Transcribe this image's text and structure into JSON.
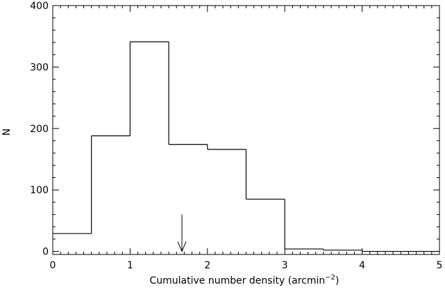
{
  "chart_data": {
    "type": "bar",
    "subtype": "step-histogram",
    "xlabel": "Cumulative number density (arcmin",
    "xlabel_exponent": "−2",
    "xlabel_suffix": ")",
    "ylabel": "N",
    "xlim": [
      0,
      5
    ],
    "ylim": [
      -5,
      400
    ],
    "xticks": [
      0,
      1,
      2,
      3,
      4,
      5
    ],
    "yticks": [
      0,
      100,
      200,
      300,
      400
    ],
    "bin_edges": [
      0,
      0.5,
      1.0,
      1.5,
      2.0,
      2.5,
      3.0,
      3.5,
      4.0,
      4.5,
      5.0
    ],
    "values": [
      29,
      188,
      341,
      174,
      166,
      85,
      4,
      2,
      0,
      0
    ],
    "grid": false,
    "annotations": [
      {
        "type": "arrow",
        "x": 1.67,
        "y_from": 60,
        "y_to": 0
      }
    ]
  }
}
